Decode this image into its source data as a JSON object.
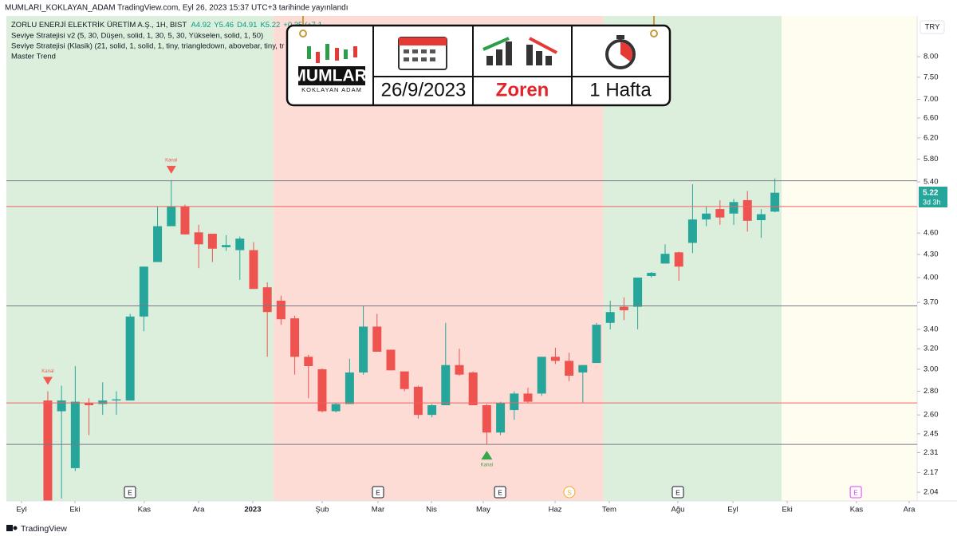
{
  "header": {
    "published": "MUMLARI_KOKLAYAN_ADAM TradingView.com, Eyl 26, 2023 15:37 UTC+3 tarihinde yayınlandı",
    "symbol": "ZORLU ENERJİ ELEKTRİK ÜRETİM A.Ş., 1H, BIST",
    "ohlc": [
      "A4.92",
      "Y5.46",
      "D4.91",
      "K5.22",
      "+0.35 (+7.1"
    ],
    "indicators": [
      "Seviye Stratejisi v2 (5, 30, Düşen, solid, 1, 30, 5, 30, Yükselen, solid, 1, 50)",
      "Seviye Stratejisi (Klasik) (21, solid, 1, solid, 1, tiny, triangledown, abovebar, tiny, tr",
      "Master Trend"
    ],
    "currency": "TRY",
    "countdown": "3d 3h",
    "footer": "TradingView"
  },
  "logo": {
    "brand": "MUMLARI",
    "tagline": "KOKLAYAN ADAM",
    "date": "26/9/2023",
    "ticker": "Zoren",
    "period": "1 Hafta"
  },
  "chart_data": {
    "type": "candlestick",
    "log_scale": true,
    "up_color": "#26a69a",
    "down_color": "#ef5350",
    "open": [
      2.72,
      2.63,
      2.2,
      2.7,
      2.69,
      2.72,
      2.72,
      3.54,
      4.2,
      4.7,
      5.0,
      4.61,
      4.59,
      4.4,
      4.36,
      4.36,
      3.88,
      3.72,
      3.52,
      3.12,
      3.0,
      2.63,
      2.69,
      2.97,
      3.43,
      3.19,
      2.98,
      2.84,
      2.6,
      2.68,
      3.04,
      2.97,
      2.68,
      2.46,
      2.64,
      2.78,
      2.78,
      3.12,
      3.08,
      2.97,
      3.06,
      3.47,
      3.65,
      3.65,
      4.02,
      4.18,
      4.33,
      4.46,
      4.8,
      4.96,
      4.89,
      5.1,
      4.79,
      4.92
    ],
    "high": [
      2.8,
      2.85,
      3.03,
      2.74,
      2.88,
      2.8,
      3.57,
      4.14,
      5.0,
      5.43,
      5.03,
      4.72,
      4.59,
      4.57,
      4.55,
      4.47,
      3.94,
      3.78,
      3.55,
      3.14,
      3.01,
      2.7,
      3.1,
      3.66,
      3.57,
      3.19,
      2.98,
      2.85,
      2.69,
      3.47,
      3.2,
      2.98,
      2.69,
      2.71,
      2.8,
      2.83,
      3.12,
      3.21,
      3.16,
      3.04,
      3.47,
      3.72,
      3.76,
      4.0,
      4.07,
      4.44,
      4.34,
      5.36,
      5.0,
      5.1,
      5.12,
      5.25,
      4.96,
      5.46
    ],
    "low": [
      1.95,
      2.0,
      2.18,
      2.44,
      2.6,
      2.6,
      2.72,
      3.38,
      4.2,
      4.7,
      4.58,
      4.12,
      4.2,
      4.35,
      3.97,
      3.86,
      3.12,
      3.45,
      2.95,
      2.74,
      2.62,
      2.62,
      2.69,
      2.95,
      3.17,
      2.99,
      2.8,
      2.57,
      2.58,
      2.68,
      2.94,
      2.68,
      2.37,
      2.44,
      2.56,
      2.7,
      2.76,
      3.05,
      2.89,
      2.7,
      3.06,
      3.4,
      3.5,
      3.4,
      4.0,
      4.18,
      3.96,
      4.32,
      4.7,
      4.72,
      4.72,
      4.62,
      4.53,
      4.91
    ],
    "close": [
      1.98,
      2.72,
      2.71,
      2.68,
      2.72,
      2.73,
      3.54,
      4.14,
      4.7,
      5.0,
      4.58,
      4.44,
      4.38,
      4.43,
      4.52,
      3.86,
      3.59,
      3.51,
      3.12,
      3.03,
      2.63,
      2.69,
      2.97,
      3.43,
      3.17,
      2.99,
      2.82,
      2.6,
      2.68,
      3.04,
      2.95,
      2.68,
      2.46,
      2.7,
      2.78,
      2.71,
      3.12,
      3.08,
      2.94,
      3.04,
      3.45,
      3.59,
      3.61,
      4.0,
      4.06,
      4.31,
      4.14,
      4.8,
      4.89,
      4.83,
      5.07,
      4.78,
      4.88,
      5.22
    ],
    "xlim": [
      -3.02,
      63.37
    ],
    "ylim": [
      1.985,
      9.09
    ],
    "xticks": [
      {
        "value": -1.92,
        "label": "Eyl"
      },
      {
        "value": 1.98,
        "label": "Eki"
      },
      {
        "value": 7.03,
        "label": "Kas"
      },
      {
        "value": 10.99,
        "label": "Ara"
      },
      {
        "value": 14.94,
        "label": "2023"
      },
      {
        "value": 20.0,
        "label": "Şub"
      },
      {
        "value": 24.07,
        "label": "Mar"
      },
      {
        "value": 27.97,
        "label": "Nis"
      },
      {
        "value": 31.74,
        "label": "May"
      },
      {
        "value": 36.98,
        "label": "Haz"
      },
      {
        "value": 40.93,
        "label": "Tem"
      },
      {
        "value": 45.93,
        "label": "Ağu"
      },
      {
        "value": 49.94,
        "label": "Eyl"
      },
      {
        "value": 53.9,
        "label": "Eki"
      },
      {
        "value": 58.95,
        "label": "Kas"
      },
      {
        "value": 62.79,
        "label": "Ara"
      }
    ],
    "yticks": [
      {
        "value": 8,
        "label": "8.00"
      },
      {
        "value": 7.5,
        "label": "7.50"
      },
      {
        "value": 7,
        "label": "7.00"
      },
      {
        "value": 6.6,
        "label": "6.60"
      },
      {
        "value": 6.2,
        "label": "6.20"
      },
      {
        "value": 5.8,
        "label": "5.80"
      },
      {
        "value": 5.4,
        "label": "5.40"
      },
      {
        "value": 4.6,
        "label": "4.60"
      },
      {
        "value": 4.3,
        "label": "4.30"
      },
      {
        "value": 4,
        "label": "4.00"
      },
      {
        "value": 3.7,
        "label": "3.70"
      },
      {
        "value": 3.4,
        "label": "3.40"
      },
      {
        "value": 3.2,
        "label": "3.20"
      },
      {
        "value": 3,
        "label": "3.00"
      },
      {
        "value": 2.8,
        "label": "2.80"
      },
      {
        "value": 2.6,
        "label": "2.60"
      },
      {
        "value": 2.45,
        "label": "2.45"
      },
      {
        "value": 2.31,
        "label": "2.31"
      },
      {
        "value": 2.17,
        "label": "2.17"
      },
      {
        "value": 2.04,
        "label": "2.04"
      }
    ],
    "zones": [
      {
        "from": -3.02,
        "to": 16.45,
        "color": "#dcefdc"
      },
      {
        "from": 16.45,
        "to": 40.5,
        "color": "#fcdcd5"
      },
      {
        "from": 40.5,
        "to": 53.5,
        "color": "#dcefdc"
      },
      {
        "from": 53.5,
        "to": 63.37,
        "color": "#fffdf0"
      }
    ],
    "levels": [
      {
        "value": 5.42,
        "color": "#787b86"
      },
      {
        "value": 5.0,
        "color": "#f06060"
      },
      {
        "value": 3.66,
        "color": "#787b86"
      },
      {
        "value": 2.7,
        "color": "#f06060"
      },
      {
        "value": 2.37,
        "color": "#787b86"
      }
    ],
    "events": [
      {
        "x": 5.99,
        "label": "E",
        "color": "#131722"
      },
      {
        "x": 24.07,
        "label": "E",
        "color": "#131722"
      },
      {
        "x": 32.97,
        "label": "E",
        "color": "#131722"
      },
      {
        "x": 38.02,
        "label": "S",
        "color": "#f5a623"
      },
      {
        "x": 45.93,
        "label": "E",
        "color": "#131722"
      },
      {
        "x": 58.9,
        "label": "E",
        "color": "#e040fb"
      }
    ],
    "signals": [
      {
        "candle": 0,
        "label": "Kanal",
        "direction": "down",
        "color": "#f05a50"
      },
      {
        "candle": 9,
        "label": "Kanal",
        "direction": "down",
        "color": "#f05a50"
      },
      {
        "candle": 32,
        "label": "Kanal",
        "direction": "up",
        "color": "#3aa64a"
      }
    ]
  }
}
